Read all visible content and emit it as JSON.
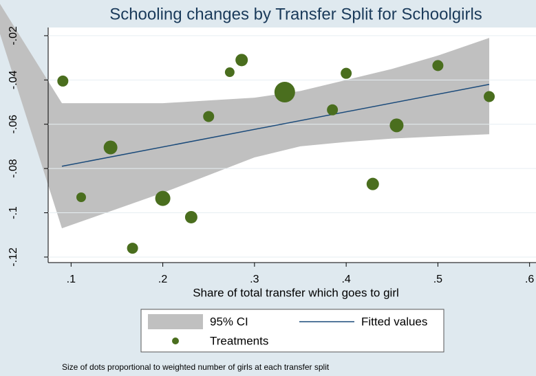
{
  "chart_data": {
    "type": "scatter",
    "title": "Schooling changes by Transfer Split for Schoolgirls",
    "x_label": "Share of total transfer which goes to girl",
    "note": "Size of dots proportional to weighted number of girls at each transfer split",
    "xlim": [
      0.075,
      0.607
    ],
    "ylim": [
      -0.1225,
      -0.0163
    ],
    "xticks": [
      {
        "value": 0.1,
        "label": ".1"
      },
      {
        "value": 0.2,
        "label": ".2"
      },
      {
        "value": 0.3,
        "label": ".3"
      },
      {
        "value": 0.4,
        "label": ".4"
      },
      {
        "value": 0.5,
        "label": ".5"
      },
      {
        "value": 0.6,
        "label": ".6"
      }
    ],
    "yticks": [
      {
        "value": -0.02,
        "label": "-.02"
      },
      {
        "value": -0.04,
        "label": "-.04"
      },
      {
        "value": -0.06,
        "label": "-.06"
      },
      {
        "value": -0.08,
        "label": "-.08"
      },
      {
        "value": -0.1,
        "label": "-.1"
      },
      {
        "value": -0.12,
        "label": "-.12"
      }
    ],
    "ci": {
      "name": "95% CI",
      "color": "#c0c0c0",
      "x": [
        0.02,
        0.09,
        0.2,
        0.3,
        0.35,
        0.4,
        0.45,
        0.5,
        0.556
      ],
      "upper": [
        -0.004,
        -0.0505,
        -0.0505,
        -0.048,
        -0.045,
        -0.04,
        -0.035,
        -0.029,
        -0.021
      ],
      "lower": [
        -0.016,
        -0.107,
        -0.091,
        -0.075,
        -0.07,
        -0.068,
        -0.0665,
        -0.0655,
        -0.0645
      ]
    },
    "fit": {
      "name": "Fitted values",
      "color": "#1a4a7a",
      "x": [
        0.09,
        0.556
      ],
      "values": [
        -0.079,
        -0.042
      ]
    },
    "series": [
      {
        "name": "Treatments",
        "color": "#4a6e1e",
        "x": [
          0.091,
          0.111,
          0.143,
          0.167,
          0.2,
          0.231,
          0.25,
          0.273,
          0.286,
          0.333,
          0.385,
          0.4,
          0.429,
          0.455,
          0.5,
          0.556
        ],
        "values": [
          -0.0405,
          -0.093,
          -0.0705,
          -0.116,
          -0.0935,
          -0.102,
          -0.0565,
          -0.0365,
          -0.031,
          -0.0455,
          -0.0535,
          -0.037,
          -0.087,
          -0.0605,
          -0.0335,
          -0.0475
        ],
        "sizes": [
          8,
          7,
          10,
          8,
          11,
          9,
          8,
          7,
          9,
          15,
          8,
          8,
          9,
          10,
          8,
          8
        ]
      }
    ]
  }
}
